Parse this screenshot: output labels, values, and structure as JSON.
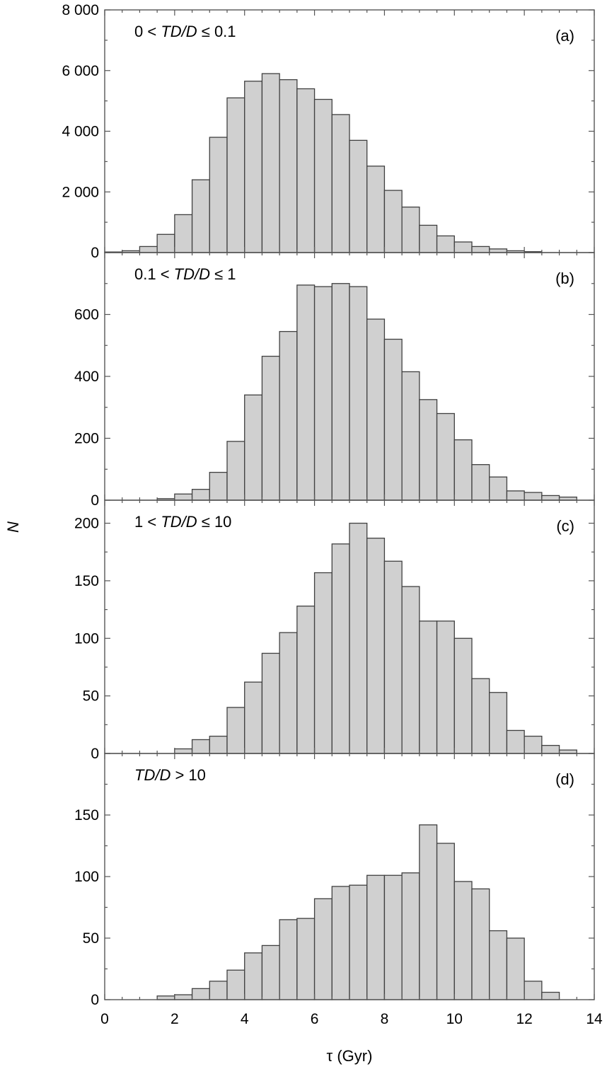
{
  "figure": {
    "ylabel": "N",
    "xlabel": "τ (Gyr)"
  },
  "chart_data": [
    {
      "type": "bar",
      "panel": "(a)",
      "condition_plain": "0 < TD/D ≤ 0.1",
      "condition": [
        {
          "t": "0 < ",
          "i": false
        },
        {
          "t": "TD/D",
          "i": true
        },
        {
          "t": " ≤ 0.1",
          "i": false
        }
      ],
      "bin_start": 0,
      "bin_width": 0.5,
      "values": [
        20,
        60,
        200,
        600,
        1250,
        2400,
        3800,
        5100,
        5650,
        5900,
        5700,
        5400,
        5050,
        4550,
        3700,
        2850,
        2050,
        1500,
        900,
        550,
        350,
        200,
        120,
        60,
        30
      ],
      "xlim": [
        0,
        14
      ],
      "ylim": [
        0,
        8000
      ],
      "yticks": [
        0,
        2000,
        4000,
        6000,
        8000
      ],
      "ytick_labels": [
        "0",
        "2 000",
        "4 000",
        "6 000",
        "8 000"
      ]
    },
    {
      "type": "bar",
      "panel": "(b)",
      "condition_plain": "0.1 < TD/D ≤ 1",
      "condition": [
        {
          "t": "0.1 < ",
          "i": false
        },
        {
          "t": "TD/D",
          "i": true
        },
        {
          "t": " ≤ 1",
          "i": false
        }
      ],
      "bin_start": 0,
      "bin_width": 0.5,
      "values": [
        0,
        0,
        0,
        5,
        20,
        35,
        90,
        190,
        340,
        465,
        545,
        695,
        690,
        700,
        690,
        585,
        520,
        415,
        325,
        280,
        195,
        115,
        75,
        30,
        25,
        15,
        10
      ],
      "xlim": [
        0,
        14
      ],
      "ylim": [
        0,
        800
      ],
      "yticks": [
        0,
        200,
        400,
        600
      ],
      "ytick_labels": [
        "0",
        "200",
        "400",
        "600"
      ]
    },
    {
      "type": "bar",
      "panel": "(c)",
      "condition_plain": "1 < TD/D ≤ 10",
      "condition": [
        {
          "t": "1 < ",
          "i": false
        },
        {
          "t": "TD/D",
          "i": true
        },
        {
          "t": " ≤ 10",
          "i": false
        }
      ],
      "bin_start": 0,
      "bin_width": 0.5,
      "values": [
        0,
        0,
        0,
        0,
        4,
        12,
        15,
        40,
        62,
        87,
        105,
        128,
        157,
        182,
        200,
        187,
        167,
        145,
        115,
        115,
        100,
        65,
        53,
        20,
        15,
        7,
        3
      ],
      "xlim": [
        0,
        14
      ],
      "ylim": [
        0,
        220
      ],
      "yticks": [
        0,
        50,
        100,
        150,
        200
      ],
      "ytick_labels": [
        "0",
        "50",
        "100",
        "150",
        "200"
      ]
    },
    {
      "type": "bar",
      "panel": "(d)",
      "condition_plain": "TD/D > 10",
      "condition": [
        {
          "t": "TD/D",
          "i": true
        },
        {
          "t": " > 10",
          "i": false
        }
      ],
      "bin_start": 0,
      "bin_width": 0.5,
      "values": [
        0,
        0,
        0,
        3,
        4,
        9,
        15,
        24,
        38,
        44,
        65,
        66,
        82,
        92,
        93,
        101,
        101,
        103,
        142,
        127,
        96,
        90,
        56,
        50,
        15,
        6
      ],
      "xlim": [
        0,
        14
      ],
      "ylim": [
        0,
        200
      ],
      "yticks": [
        0,
        50,
        100,
        150
      ],
      "ytick_labels": [
        "0",
        "50",
        "100",
        "150"
      ],
      "xticks": [
        0,
        2,
        4,
        6,
        8,
        10,
        12,
        14
      ],
      "xtick_labels": [
        "0",
        "2",
        "4",
        "6",
        "8",
        "10",
        "12",
        "14"
      ]
    }
  ],
  "colors": {
    "bar_fill": "#d0d0d0",
    "bar_edge": "#404040",
    "axis": "#555555"
  }
}
